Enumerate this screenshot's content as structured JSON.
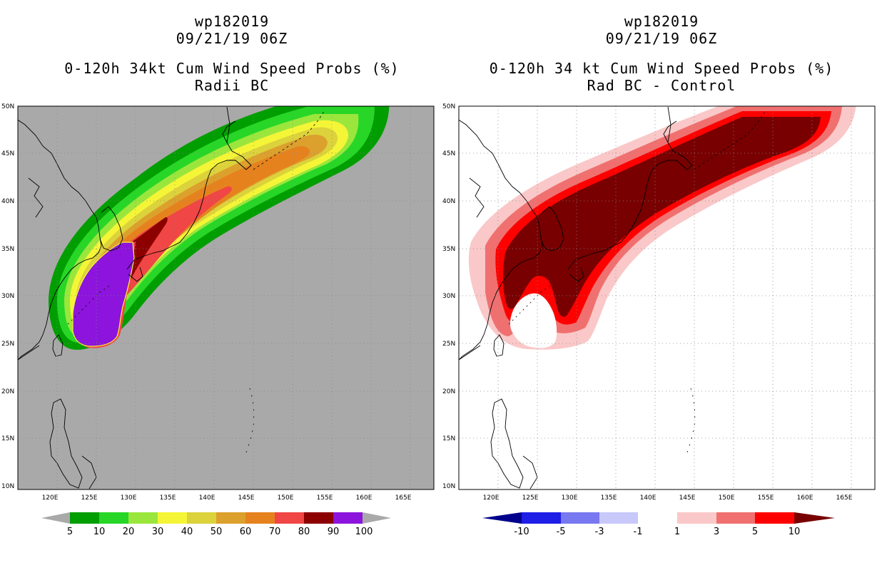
{
  "left_panel": {
    "title_line1": "wp182019",
    "title_line2": "09/21/19 06Z",
    "title_line3": "0-120h 34kt Cum Wind Speed Probs (%)",
    "title_line4": "Radii BC",
    "background_color": "#a9a9a9",
    "colorbar": {
      "labels": [
        "5",
        "10",
        "20",
        "30",
        "40",
        "50",
        "60",
        "70",
        "80",
        "90",
        "100"
      ],
      "colors": [
        "#009e00",
        "#27d627",
        "#9be63c",
        "#f5f537",
        "#dcd23c",
        "#dca02d",
        "#e6821e",
        "#f04646",
        "#8c0000",
        "#8c14dc"
      ]
    }
  },
  "right_panel": {
    "title_line1": "wp182019",
    "title_line2": "09/21/19 06Z",
    "title_line3": "0-120h 34 kt Cum Wind Speed Probs (%)",
    "title_line4": "Rad BC - Control",
    "background_color": "#ffffff",
    "colorbar": {
      "labels": [
        "-10",
        "-5",
        "-3",
        "-1",
        "1",
        "3",
        "5",
        "10"
      ],
      "colors": [
        "#00008c",
        "#1e1ee6",
        "#7878f0",
        "#c8c8fa",
        "#ffffff",
        "#fac8c8",
        "#f07070",
        "#ff0000",
        "#780000"
      ]
    }
  },
  "axes": {
    "lat_labels": [
      "50N",
      "45N",
      "40N",
      "35N",
      "30N",
      "25N",
      "20N",
      "15N",
      "10N"
    ],
    "lon_labels": [
      "120E",
      "125E",
      "130E",
      "135E",
      "140E",
      "145E",
      "150E",
      "155E",
      "160E",
      "165E"
    ]
  }
}
